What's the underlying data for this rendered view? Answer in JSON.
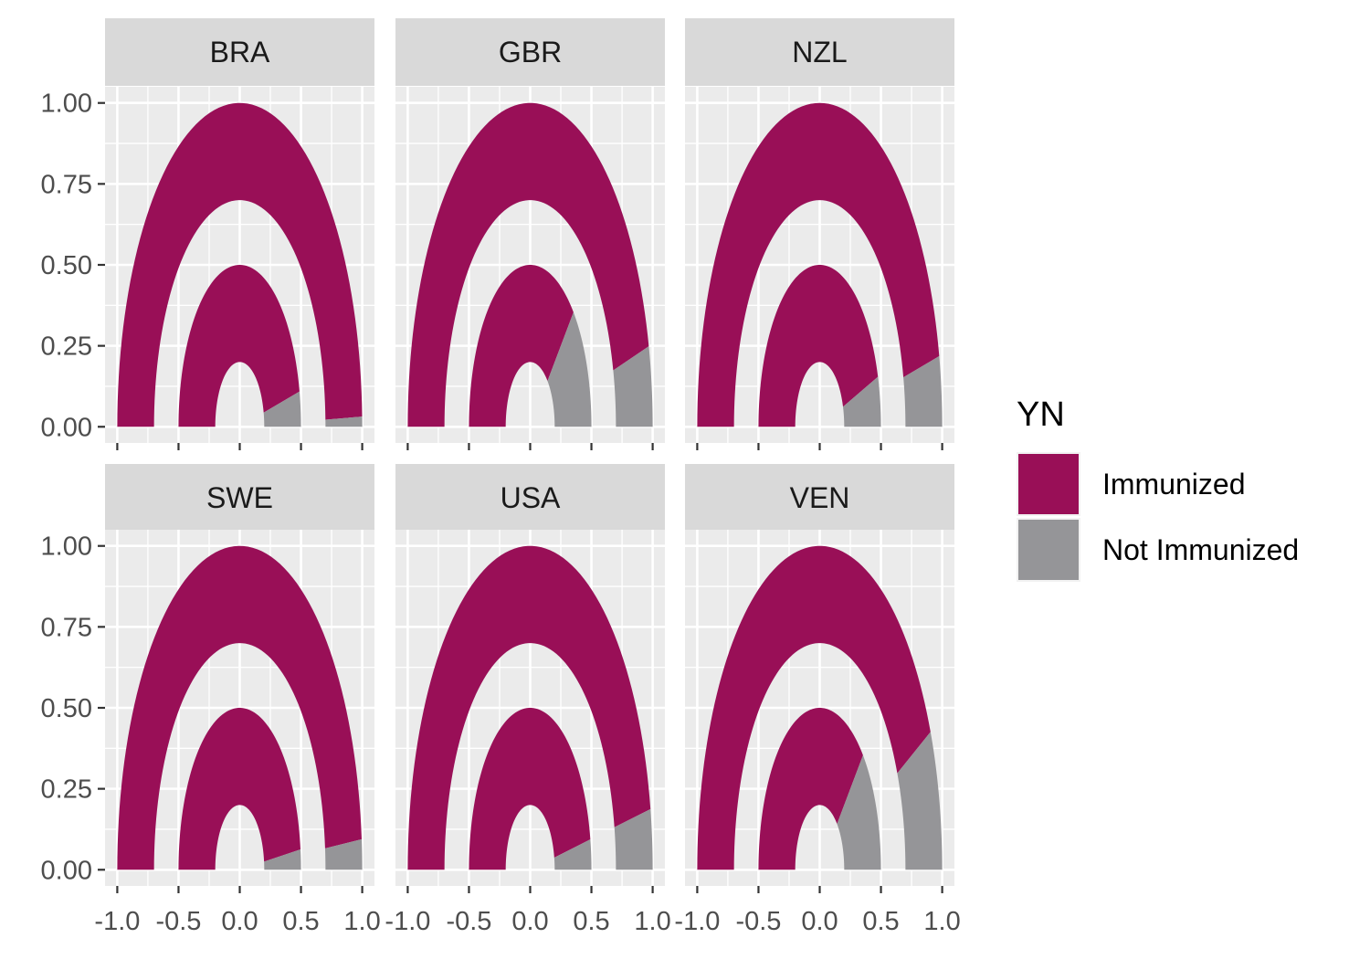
{
  "chart_data": {
    "type": "donut-facet",
    "description_free": true,
    "facets": [
      {
        "name": "BRA",
        "inner_immunized_pct": 93,
        "outer_immunized_pct": 99
      },
      {
        "name": "GBR",
        "inner_immunized_pct": 75,
        "outer_immunized_pct": 92
      },
      {
        "name": "NZL",
        "inner_immunized_pct": 90,
        "outer_immunized_pct": 93
      },
      {
        "name": "SWE",
        "inner_immunized_pct": 96,
        "outer_immunized_pct": 97
      },
      {
        "name": "USA",
        "inner_immunized_pct": 94,
        "outer_immunized_pct": 94
      },
      {
        "name": "VEN",
        "inner_immunized_pct": 75,
        "outer_immunized_pct": 86
      }
    ],
    "x_ticks": [
      "-1.0",
      "-0.5",
      "0.0",
      "0.5",
      "1.0"
    ],
    "y_ticks": [
      "0.00",
      "0.25",
      "0.50",
      "0.75",
      "1.00"
    ],
    "xlim": [
      -1.1,
      1.1
    ],
    "ylim": [
      -0.05,
      1.05
    ],
    "legend": {
      "title": "YN",
      "position": "right",
      "entries": [
        {
          "label": "Immunized",
          "color": "#990F57"
        },
        {
          "label": "Not Immunized",
          "color": "#959598"
        }
      ]
    },
    "colors": {
      "panel_bg": "#EBEBEB",
      "strip_bg": "#D9D9D9",
      "grid": "#FFFFFF"
    }
  }
}
